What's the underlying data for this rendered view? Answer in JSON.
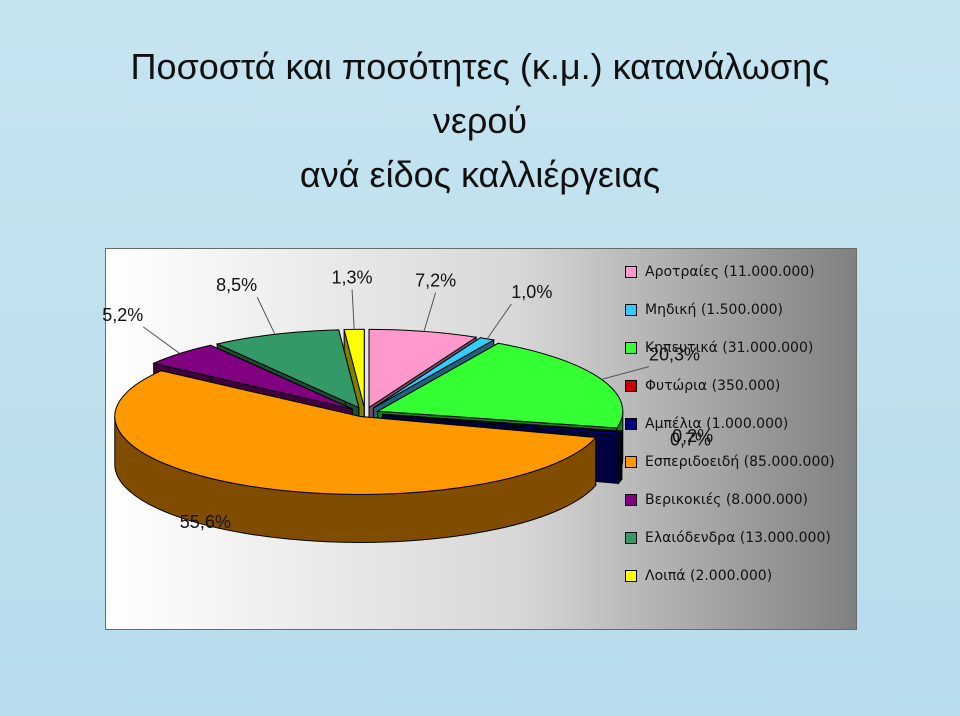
{
  "title_lines": [
    "Ποσοστά και ποσότητες (κ.μ.) κατανάλωσης",
    "νερού",
    "ανά είδος καλλιέργειας"
  ],
  "chart_data": {
    "type": "pie",
    "title": "Ποσοστά και ποσότητες (κ.μ.) κατανάλωσης νερού ανά είδος καλλιέργειας",
    "legend_position": "right",
    "series": [
      {
        "name": "Αροτραίες (11.000.000)",
        "value": 11000000,
        "label": "7,2%",
        "color": "#ff99cc"
      },
      {
        "name": "Μηδική (1.500.000)",
        "value": 1500000,
        "label": "1,0%",
        "color": "#33ccff"
      },
      {
        "name": "Κηπευτικά (31.000.000)",
        "value": 31000000,
        "label": "20,3%",
        "color": "#33ff33"
      },
      {
        "name": "Φυτώρια (350.000)",
        "value": 350000,
        "label": "0,2%",
        "color": "#cc0000"
      },
      {
        "name": "Αμπέλια (1.000.000)",
        "value": 1000000,
        "label": "0,7%",
        "color": "#000080"
      },
      {
        "name": "Εσπεριδοειδή (85.000.000)",
        "value": 85000000,
        "label": "55,6%",
        "color": "#ff9900"
      },
      {
        "name": "Βερικοκιές (8.000.000)",
        "value": 8000000,
        "label": "5,2%",
        "color": "#800080"
      },
      {
        "name": "Ελαιόδενδρα (13.000.000)",
        "value": 13000000,
        "label": "8,5%",
        "color": "#339966"
      },
      {
        "name": "Λοιπά (2.000.000)",
        "value": 2000000,
        "label": "1,3%",
        "color": "#ffff00"
      }
    ]
  }
}
